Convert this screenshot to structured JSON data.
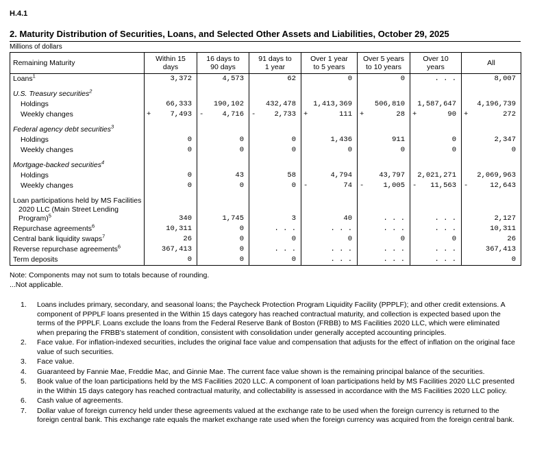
{
  "report": {
    "code": "H.4.1",
    "title": "2. Maturity Distribution of Securities, Loans, and Selected Other Assets and Liabilities, October 29, 2025",
    "units_label": "Millions of dollars"
  },
  "table": {
    "row_header_label": "Remaining Maturity",
    "na_marker": ". . .",
    "columns": [
      {
        "line1": "Within 15",
        "line2": "days"
      },
      {
        "line1": "16 days to",
        "line2": "90 days"
      },
      {
        "line1": "91 days to",
        "line2": "1 year"
      },
      {
        "line1": "Over 1 year",
        "line2": "to 5 years"
      },
      {
        "line1": "Over 5 years",
        "line2": "to 10 years"
      },
      {
        "line1": "Over 10",
        "line2": "years"
      },
      {
        "line1": "All",
        "line2": ""
      }
    ],
    "rows": [
      {
        "style": "item",
        "label": "Loans",
        "sup": "1",
        "cells": [
          {
            "v": "3,372"
          },
          {
            "v": "4,573"
          },
          {
            "v": "62"
          },
          {
            "v": "0"
          },
          {
            "v": "0"
          },
          {
            "v": ". . ."
          },
          {
            "v": "8,007"
          }
        ]
      },
      {
        "style": "section",
        "gap": true,
        "label": "U.S. Treasury securities",
        "sup": "2",
        "cells": [
          {
            "v": ""
          },
          {
            "v": ""
          },
          {
            "v": ""
          },
          {
            "v": ""
          },
          {
            "v": ""
          },
          {
            "v": ""
          },
          {
            "v": ""
          }
        ]
      },
      {
        "style": "sub",
        "label": "Holdings",
        "cells": [
          {
            "v": "66,333"
          },
          {
            "v": "190,102"
          },
          {
            "v": "432,478"
          },
          {
            "v": "1,413,369"
          },
          {
            "v": "506,810"
          },
          {
            "v": "1,587,647"
          },
          {
            "v": "4,196,739"
          }
        ]
      },
      {
        "style": "sub",
        "label": "Weekly changes",
        "cells": [
          {
            "s": "+",
            "v": "7,493"
          },
          {
            "s": "-",
            "v": "4,716"
          },
          {
            "s": "-",
            "v": "2,733"
          },
          {
            "s": "+",
            "v": "111"
          },
          {
            "s": "+",
            "v": "28"
          },
          {
            "s": "+",
            "v": "90"
          },
          {
            "s": "+",
            "v": "272"
          }
        ]
      },
      {
        "style": "section",
        "gap": true,
        "label": "Federal agency debt securities",
        "sup": "3",
        "cells": [
          {
            "v": ""
          },
          {
            "v": ""
          },
          {
            "v": ""
          },
          {
            "v": ""
          },
          {
            "v": ""
          },
          {
            "v": ""
          },
          {
            "v": ""
          }
        ]
      },
      {
        "style": "sub",
        "label": "Holdings",
        "cells": [
          {
            "v": "0"
          },
          {
            "v": "0"
          },
          {
            "v": "0"
          },
          {
            "v": "1,436"
          },
          {
            "v": "911"
          },
          {
            "v": "0"
          },
          {
            "v": "2,347"
          }
        ]
      },
      {
        "style": "sub",
        "label": "Weekly changes",
        "cells": [
          {
            "v": "0"
          },
          {
            "v": "0"
          },
          {
            "v": "0"
          },
          {
            "v": "0"
          },
          {
            "v": "0"
          },
          {
            "v": "0"
          },
          {
            "v": "0"
          }
        ]
      },
      {
        "style": "section",
        "gap": true,
        "label": "Mortgage-backed securities",
        "sup": "4",
        "cells": [
          {
            "v": ""
          },
          {
            "v": ""
          },
          {
            "v": ""
          },
          {
            "v": ""
          },
          {
            "v": ""
          },
          {
            "v": ""
          },
          {
            "v": ""
          }
        ]
      },
      {
        "style": "sub",
        "label": "Holdings",
        "cells": [
          {
            "v": "0"
          },
          {
            "v": "43"
          },
          {
            "v": "58"
          },
          {
            "v": "4,794"
          },
          {
            "v": "43,797"
          },
          {
            "v": "2,021,271"
          },
          {
            "v": "2,069,963"
          }
        ]
      },
      {
        "style": "sub",
        "label": "Weekly changes",
        "cells": [
          {
            "v": "0"
          },
          {
            "v": "0"
          },
          {
            "v": "0"
          },
          {
            "s": "-",
            "v": "74"
          },
          {
            "s": "-",
            "v": "1,005"
          },
          {
            "s": "-",
            "v": "11,563"
          },
          {
            "s": "-",
            "v": "12,643"
          }
        ]
      },
      {
        "style": "wrap",
        "gap": true,
        "valign": "bottom",
        "label": "Loan participations held by MS Facilities 2020 LLC (Main Street Lending Program)",
        "sup": "5",
        "cells": [
          {
            "v": "340"
          },
          {
            "v": "1,745"
          },
          {
            "v": "3"
          },
          {
            "v": "40"
          },
          {
            "v": ". . ."
          },
          {
            "v": ". . ."
          },
          {
            "v": "2,127"
          }
        ]
      },
      {
        "style": "item",
        "label": "Repurchase agreements",
        "sup": "6",
        "cells": [
          {
            "v": "10,311"
          },
          {
            "v": "0"
          },
          {
            "v": ". . ."
          },
          {
            "v": ". . ."
          },
          {
            "v": ". . ."
          },
          {
            "v": ". . ."
          },
          {
            "v": "10,311"
          }
        ]
      },
      {
        "style": "item",
        "label": "Central bank liquidity swaps",
        "sup": "7",
        "cells": [
          {
            "v": "26"
          },
          {
            "v": "0"
          },
          {
            "v": "0"
          },
          {
            "v": "0"
          },
          {
            "v": "0"
          },
          {
            "v": "0"
          },
          {
            "v": "26"
          }
        ]
      },
      {
        "style": "item",
        "label": "Reverse repurchase agreements",
        "sup": "6",
        "cells": [
          {
            "v": "367,413"
          },
          {
            "v": "0"
          },
          {
            "v": ". . ."
          },
          {
            "v": ". . ."
          },
          {
            "v": ". . ."
          },
          {
            "v": ". . ."
          },
          {
            "v": "367,413"
          }
        ]
      },
      {
        "style": "item",
        "label": "Term deposits",
        "cells": [
          {
            "v": "0"
          },
          {
            "v": "0"
          },
          {
            "v": "0"
          },
          {
            "v": ". . ."
          },
          {
            "v": ". . ."
          },
          {
            "v": ". . ."
          },
          {
            "v": "0"
          }
        ]
      }
    ]
  },
  "notes": [
    "Note: Components may not sum to totals because of rounding.",
    "...Not applicable."
  ],
  "footnotes": [
    {
      "num": "1.",
      "text": "Loans includes primary, secondary, and seasonal loans; the Paycheck Protection Program Liquidity Facility (PPPLF); and other credit extensions. A component of PPPLF loans presented in the Within 15 days category has reached contractual maturity, and collection is expected based upon the terms of the PPPLF. Loans exclude the loans from the Federal Reserve Bank of Boston (FRBB) to MS Facilities 2020 LLC, which were eliminated when preparing the FRBB's statement of condition, consistent with consolidation under generally accepted accounting principles."
    },
    {
      "num": "2.",
      "text": "Face value. For inflation-indexed securities, includes the original face value and compensation that adjusts for the effect of inflation on the original face value of such securities."
    },
    {
      "num": "3.",
      "text": "Face value."
    },
    {
      "num": "4.",
      "text": "Guaranteed by Fannie Mae, Freddie Mac, and Ginnie Mae. The current face value shown is the remaining principal balance of the securities."
    },
    {
      "num": "5.",
      "text": "Book value of the loan participations held by the MS Facilities 2020 LLC. A component of loan participations held by MS Facilities 2020 LLC presented in the Within 15 days category has reached contractual maturity, and collectability is assessed in accordance with the MS Facilities 2020 LLC policy."
    },
    {
      "num": "6.",
      "text": "Cash value of agreements."
    },
    {
      "num": "7.",
      "text": "Dollar value of foreign currency held under these agreements valued at the exchange rate to be used when the foreign currency is returned to the foreign central bank. This exchange rate equals the market exchange rate used when the foreign currency was acquired from the foreign central bank."
    }
  ]
}
